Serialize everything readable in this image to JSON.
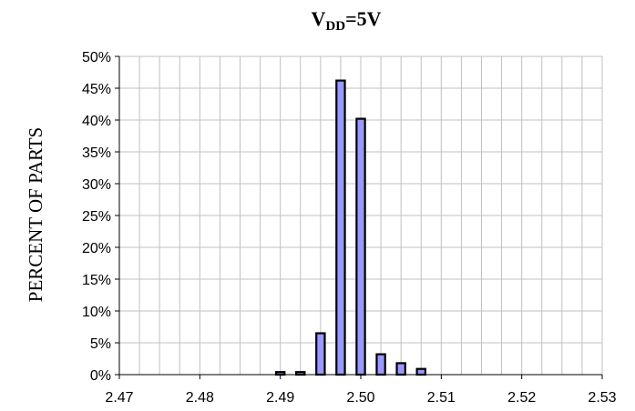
{
  "chart_data": {
    "type": "bar",
    "title": {
      "main": "V",
      "subscript": "DD",
      "suffix": "=5V"
    },
    "xlabel": "",
    "ylabel": "PERCENT OF PARTS",
    "xlim": [
      2.47,
      2.53
    ],
    "ylim": [
      0,
      0.5
    ],
    "x_ticks": [
      2.47,
      2.48,
      2.49,
      2.5,
      2.51,
      2.52,
      2.53
    ],
    "x_tick_labels": [
      "2.47",
      "2.48",
      "2.49",
      "2.50",
      "2.51",
      "2.52",
      "2.53"
    ],
    "y_ticks": [
      0,
      0.05,
      0.1,
      0.15,
      0.2,
      0.25,
      0.3,
      0.35,
      0.4,
      0.45,
      0.5
    ],
    "y_tick_labels": [
      "0%",
      "5%",
      "10%",
      "15%",
      "20%",
      "25%",
      "30%",
      "35%",
      "40%",
      "45%",
      "50%"
    ],
    "grid": true,
    "bar_color": "#9999ff",
    "bar_edge_color": "#000000",
    "x": [
      2.47,
      2.4725,
      2.475,
      2.4775,
      2.48,
      2.4825,
      2.485,
      2.4875,
      2.49,
      2.4925,
      2.495,
      2.4975,
      2.5,
      2.5025,
      2.505,
      2.5075,
      2.51,
      2.5125,
      2.515,
      2.5175,
      2.52,
      2.5225,
      2.525,
      2.5275,
      2.53
    ],
    "values": [
      0,
      0,
      0,
      0,
      0,
      0,
      0,
      0,
      0.004,
      0.004,
      0.065,
      0.462,
      0.402,
      0.032,
      0.018,
      0.009,
      0,
      0,
      0,
      0,
      0,
      0,
      0,
      0,
      0
    ]
  }
}
